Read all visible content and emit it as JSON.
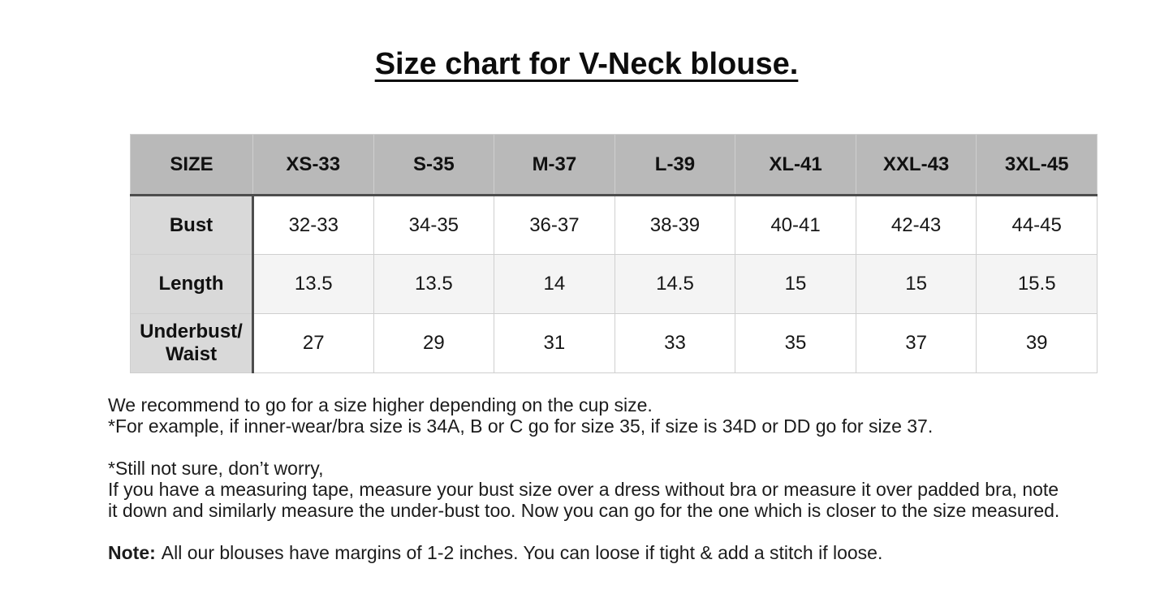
{
  "page": {
    "title": "Size chart for V-Neck blouse."
  },
  "table": {
    "columns": [
      "SIZE",
      "XS-33",
      "S-35",
      "M-37",
      "L-39",
      "XL-41",
      "XXL-43",
      "3XL-45"
    ],
    "rows": [
      {
        "label": "Bust",
        "values": [
          "32-33",
          "34-35",
          "36-37",
          "38-39",
          "40-41",
          "42-43",
          "44-45"
        ]
      },
      {
        "label": "Length",
        "values": [
          "13.5",
          "13.5",
          "14",
          "14.5",
          "15",
          "15",
          "15.5"
        ]
      },
      {
        "label": "Underbust/ Waist",
        "values": [
          "27",
          "29",
          "31",
          "33",
          "35",
          "37",
          "39"
        ]
      }
    ]
  },
  "notes": {
    "para1": [
      "We recommend to go for a size higher depending on the cup size.",
      "*For example, if inner-wear/bra size is 34A, B or C go for size 35, if size is 34D or DD go for size 37."
    ],
    "para2": [
      "*Still not sure, don’t worry,",
      "If you have a measuring tape, measure your bust size over a dress without bra or measure it over padded bra, note",
      "it down and similarly measure the under-bust too. Now you can go for the one which is closer to the size measured."
    ],
    "note_label": "Note:",
    "note_text": "All our blouses have margins of 1-2 inches. You can loose if tight & add a stitch if loose."
  },
  "colors": {
    "header_bg": "#b9b9b9",
    "row_header_bg": "#d9d9d9",
    "alt_row_bg": "#f4f4f4",
    "thin_border": "#cfcfcf",
    "dark_border": "#4d4d4d",
    "text": "#1a1a1a"
  }
}
